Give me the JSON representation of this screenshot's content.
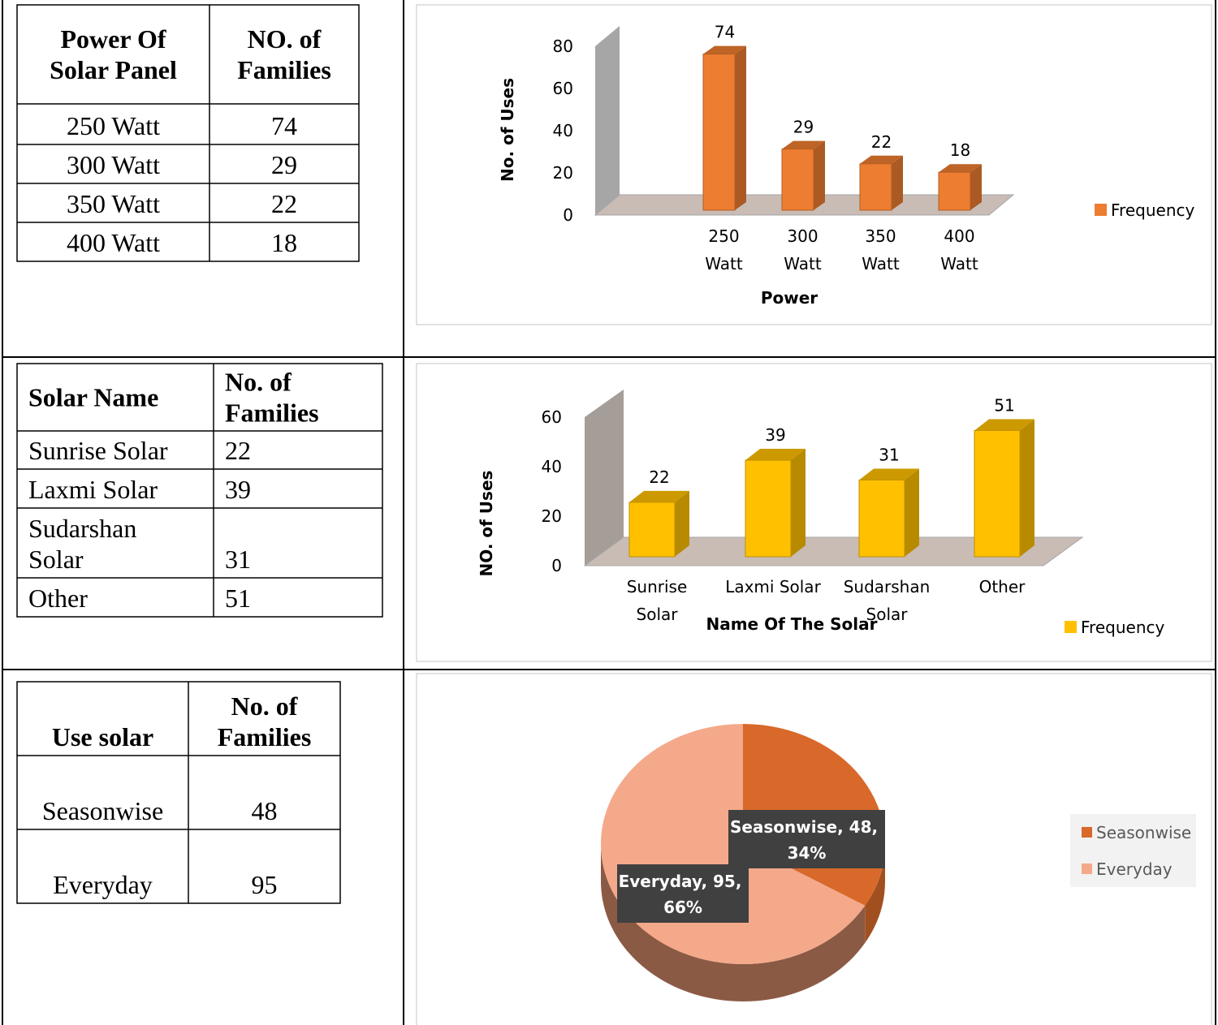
{
  "tables": [
    {
      "header": [
        "Power Of Solar Panel",
        "NO. of Families"
      ],
      "rows": [
        [
          "250 Watt",
          74
        ],
        [
          "300 Watt",
          29
        ],
        [
          "350 Watt",
          22
        ],
        [
          "400 Watt",
          18
        ]
      ]
    },
    {
      "header": [
        "Solar Name",
        "No. of Families"
      ],
      "rows": [
        [
          "Sunrise Solar",
          22
        ],
        [
          "Laxmi Solar",
          39
        ],
        [
          "Sudarshan Solar",
          31
        ],
        [
          "Other",
          51
        ]
      ]
    },
    {
      "header": [
        "Use solar",
        "No. of Families"
      ],
      "rows": [
        [
          "Seasonwise",
          48
        ],
        [
          "Everyday",
          95
        ]
      ]
    }
  ],
  "chart_data": [
    {
      "type": "bar",
      "categories": [
        "250 Watt",
        "300 Watt",
        "350 Watt",
        "400 Watt"
      ],
      "series": [
        {
          "name": "Frequency",
          "color": "#ed7d31",
          "values": [
            74,
            29,
            22,
            18
          ]
        }
      ],
      "xlabel": "Power",
      "ylabel": "No. of Uses",
      "ylim": [
        0,
        80
      ],
      "yticks": [
        0,
        20,
        40,
        60,
        80
      ],
      "legend": "right",
      "data_labels": true
    },
    {
      "type": "bar",
      "categories": [
        "Sunrise Solar",
        "Laxmi Solar",
        "Sudarshan Solar",
        "Other"
      ],
      "series": [
        {
          "name": "Frequency",
          "color": "#ffc000",
          "values": [
            22,
            39,
            31,
            51
          ]
        }
      ],
      "xlabel": "Name Of The Solar",
      "ylabel": "NO. of Uses",
      "ylim": [
        0,
        60
      ],
      "yticks": [
        0,
        20,
        40,
        60
      ],
      "legend": "right",
      "data_labels": true
    },
    {
      "type": "pie",
      "categories": [
        "Seasonwise",
        "Everyday"
      ],
      "values": [
        48,
        95
      ],
      "percent_labels": [
        "34%",
        "66%"
      ],
      "label_separator": ", ",
      "colors": [
        "#d8692a",
        "#f4a98a"
      ],
      "legend": "right"
    }
  ]
}
